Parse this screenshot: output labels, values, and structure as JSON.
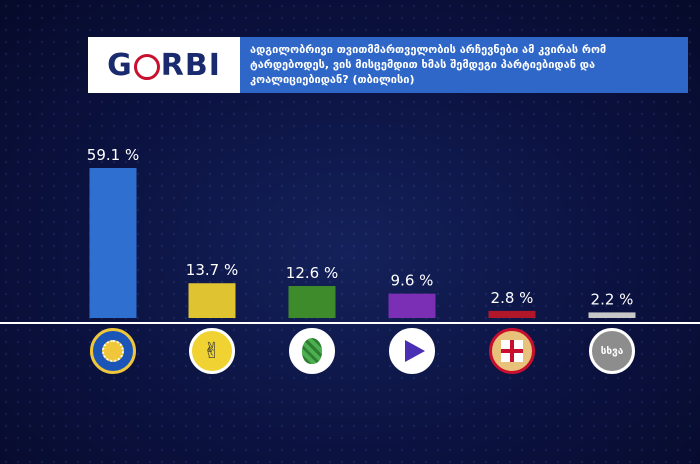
{
  "header": {
    "logo_text": "GORBI",
    "title": "ადგილობრივი თვითმმართველობის არჩევნები ამ კვირას რომ ტარდებოდეს, ვის მისცემდით ხმას შემდეგი პარტიებიდან და კოალიციებიდან? (თბილისი)"
  },
  "chart_data": {
    "type": "bar",
    "categories": [
      "party-1",
      "party-2",
      "party-3",
      "party-4",
      "party-5",
      "სხვა"
    ],
    "values": [
      59.1,
      13.7,
      12.6,
      9.6,
      2.8,
      2.2
    ],
    "value_labels": [
      "59.1 %",
      "13.7 %",
      "12.6 %",
      "9.6 %",
      "2.8 %",
      "2.2 %"
    ],
    "colors": [
      "#2f6fd0",
      "#e0c330",
      "#3d8b2a",
      "#7b2fb5",
      "#b0182a",
      "#c8c8c8"
    ],
    "ylim": [
      0,
      60
    ],
    "grid": false,
    "legend": "none",
    "category_icons": [
      "blue-seal-icon",
      "victory-hand-icon",
      "green-cone-icon",
      "play-arrow-icon",
      "flag-emblem-icon",
      "other-text-icon"
    ],
    "other_label": "სხვა"
  }
}
